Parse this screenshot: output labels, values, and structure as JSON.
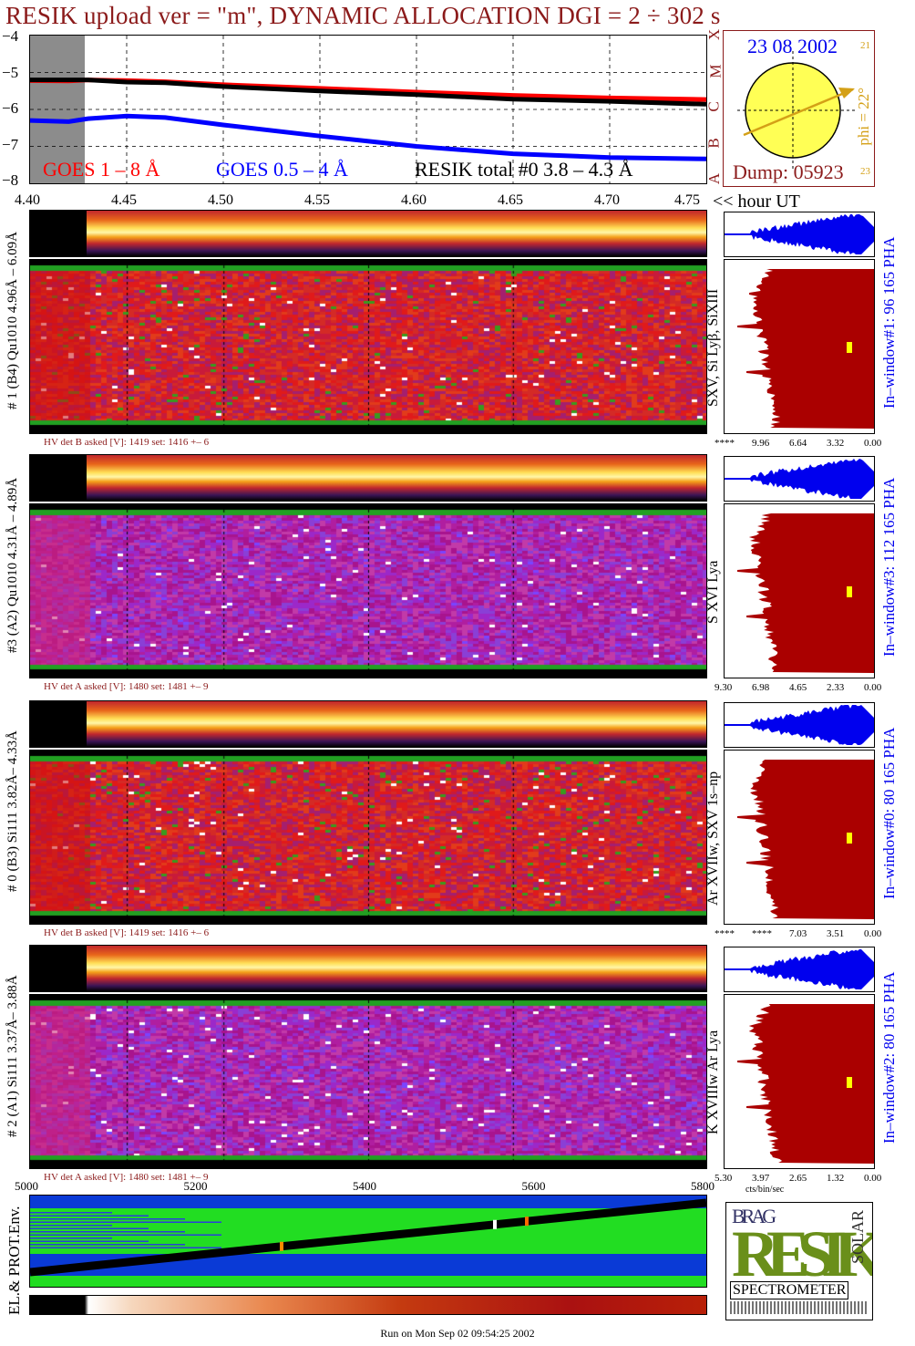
{
  "title": "RESIK upload ver = \"m\", DYNAMIC ALLOCATION  DGI =   2 ÷ 302 s",
  "goes_legend": {
    "goes_long": "GOES 1 – 8 Å",
    "goes_short": "GOES 0.5 – 4 Å",
    "resik_total": "RESIK total #0  3.8 – 4.3 Å"
  },
  "colors": {
    "title": "#8b1a1a",
    "goes_long": "#ff0000",
    "goes_short": "#0000ff",
    "resik": "#000000",
    "histogram": "#aa0000",
    "pha": "#0000ee",
    "sun": "#ffff44",
    "arrow": "#d4a017"
  },
  "time_axis": {
    "ticks": [
      "4.40",
      "4.45",
      "4.50",
      "4.55",
      "4.60",
      "4.65",
      "4.70",
      "4.75"
    ],
    "unit_label": "<< hour UT"
  },
  "flux_axis": {
    "ticks": [
      "−4",
      "−5",
      "−6",
      "−7",
      "−8"
    ],
    "classes": [
      "X",
      "M",
      "C",
      "B",
      "A"
    ]
  },
  "sun_panel": {
    "date": "23 08 2002",
    "phi": "phi = 22°",
    "dump": "Dump: 05923",
    "side_top": "21",
    "side_bottom": "23"
  },
  "detectors": [
    {
      "id": "det1",
      "left_label": "# 1 (B4) Qu1010 4.96Å – 6.09Å",
      "right_label": "SXV, Si Lyβ, SiXIII",
      "window_label": "In–window#1:   96 165  PHA",
      "hv": "HV det B asked [V]:  1419 set:  1416 +–    6",
      "hist_ticks": [
        "****",
        "9.96",
        "6.64",
        "3.32",
        "0.00"
      ]
    },
    {
      "id": "det3",
      "left_label": "#3 (A2) Qu1010  4.31Å – 4.89Å",
      "right_label": "S XVI Lya",
      "window_label": "In–window#3:  112 165  PHA",
      "hv": "HV det A asked [V]:  1480 set:  1481 +–    9",
      "hist_ticks": [
        "9.30",
        "6.98",
        "4.65",
        "2.33",
        "0.00"
      ]
    },
    {
      "id": "det0",
      "left_label": "# 0 (B3) Si111  3.82Å– 4.33Å",
      "right_label": "Ar XVIIw,  SXV 1s–np",
      "window_label": "In–window#0:   80 165  PHA",
      "hv": "HV det B asked [V]:  1419 set:  1416 +–    6",
      "hist_ticks": [
        "****",
        "****",
        "7.03",
        "3.51",
        "0.00"
      ]
    },
    {
      "id": "det2",
      "left_label": "# 2 (A1) Si111  3.37Å– 3.88Å",
      "right_label": "K XVIIIw  Ar Lya",
      "window_label": "In–window#2:   80 165  PHA",
      "hv": "HV det A asked [V]:  1480 set:  1481 +–    9",
      "hist_ticks": [
        "5.30",
        "3.97",
        "2.65",
        "1.32",
        "0.00"
      ],
      "hist_unit": "cts/bin/sec"
    }
  ],
  "env_panel": {
    "label": "EL.& PROT.Env.",
    "ticks": [
      "5000",
      "5200",
      "5400",
      "5600",
      "5800"
    ]
  },
  "logo": {
    "letters": "RESIK",
    "corner_text": "BRAG",
    "side_text": "SOLAR",
    "caption": "SPECTROMETER"
  },
  "footer": "Run on Mon Sep 02 09:54:25 2002",
  "chart_data": {
    "type": "line",
    "title": "RESIK upload ver = \"m\", DYNAMIC ALLOCATION  DGI =   2 ÷ 302 s",
    "xlabel": "<< hour UT",
    "ylabel": "",
    "xlim": [
      4.4,
      4.75
    ],
    "ylim": [
      -8,
      -4
    ],
    "x": [
      4.4,
      4.42,
      4.43,
      4.45,
      4.47,
      4.5,
      4.55,
      4.6,
      4.65,
      4.7,
      4.75
    ],
    "series": [
      {
        "name": "GOES 1 – 8 Å",
        "values": [
          -5.22,
          -5.23,
          -5.2,
          -5.22,
          -5.25,
          -5.33,
          -5.43,
          -5.53,
          -5.62,
          -5.69,
          -5.73
        ]
      },
      {
        "name": "GOES 0.5 – 4 Å",
        "values": [
          -6.3,
          -6.33,
          -6.25,
          -6.18,
          -6.22,
          -6.42,
          -6.72,
          -7.0,
          -7.2,
          -7.3,
          -7.34
        ]
      },
      {
        "name": "RESIK total #0  3.8 – 4.3 Å",
        "values": [
          -5.2,
          -5.2,
          -5.2,
          -5.26,
          -5.28,
          -5.38,
          -5.5,
          -5.6,
          -5.72,
          -5.78,
          -5.86
        ]
      }
    ]
  }
}
